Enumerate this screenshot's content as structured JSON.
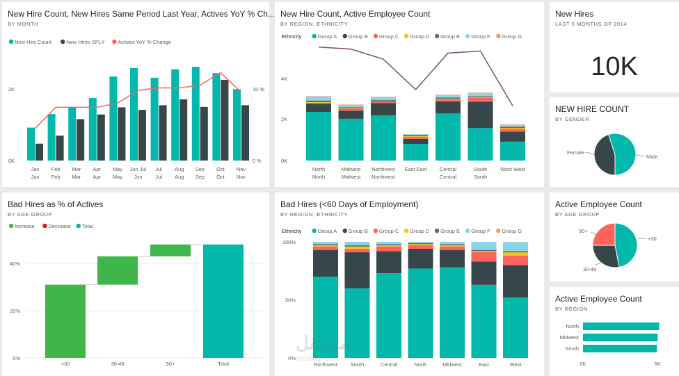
{
  "colors": {
    "teal": "#01b8aa",
    "dark": "#374649",
    "red": "#fd625e",
    "yellow": "#f2c80f",
    "gray": "#5f6b6d",
    "lightblue": "#8ad4eb",
    "orange": "#fe9666",
    "green": "#3fb64a",
    "decrease": "#e81123",
    "line": "#7a5560"
  },
  "ethnicity_legend": {
    "label": "Ethnicity",
    "items": [
      "Group A",
      "Group B",
      "Group C",
      "Group D",
      "Group E",
      "Group F",
      "Group G"
    ]
  },
  "tile1": {
    "title": "New Hire Count, New Hires Same Period Last Year, Actives YoY % Ch...",
    "subtitle": "BY MONTH",
    "legend": [
      "New Hire Count",
      "New Hires SPLY",
      "Actives YoY % Change"
    ]
  },
  "tile2": {
    "title": "New Hire Count, Active Employee Count",
    "subtitle": "BY REGION, ETHNICITY"
  },
  "tile3": {
    "title": "New Hires",
    "subtitle": "LAST 6 MONTHS OF 2014",
    "value": "10K"
  },
  "tile4": {
    "title": "NEW HIRE COUNT",
    "subtitle": "BY GENDER"
  },
  "tile5": {
    "title": "Bad Hires as % of Actives",
    "subtitle": "BY AGE GROUP",
    "legend": [
      "Increase",
      "Decrease",
      "Total"
    ]
  },
  "tile6": {
    "title": "Bad Hires (<60 Days of Employment)",
    "subtitle": "BY REGION, ETHNICITY"
  },
  "tile7": {
    "title": "Active Employee Count",
    "subtitle": "BY AGE GROUP"
  },
  "tile8": {
    "title": "Active Employee Count",
    "subtitle": "BY REGION"
  },
  "watermark": {
    "text": "مستقل",
    "url": "mostaql.com"
  },
  "chart_data": [
    {
      "type": "bar",
      "id": "monthly",
      "categories": [
        "Jan",
        "Feb",
        "Mar",
        "Apr",
        "May",
        "Jun",
        "Jul",
        "Aug",
        "Sep",
        "Oct",
        "Nov"
      ],
      "x_labels_top": [
        "Jan",
        "Feb",
        "Mar",
        "Apr",
        "May",
        "Jun Jul",
        "Jul",
        "Aug",
        "Sep",
        "Oct",
        "Nov"
      ],
      "x_labels_bottom": [
        "Jan",
        "Feb",
        "Mar",
        "Apr",
        "May",
        "Jun",
        "Jul",
        "Aug",
        "Sep",
        "Oct",
        "Nov"
      ],
      "series": [
        {
          "name": "New Hire Count",
          "values": [
            780,
            1100,
            1260,
            1480,
            1990,
            2190,
            1960,
            2160,
            2220,
            2070,
            1690
          ]
        },
        {
          "name": "New Hires SPLY",
          "values": [
            400,
            590,
            980,
            1090,
            1260,
            1200,
            1310,
            1450,
            1270,
            1910,
            1310
          ]
        },
        {
          "name": "Actives YoY % Change",
          "values": [
            3.8,
            6.3,
            6.3,
            6.3,
            6.8,
            8.3,
            8.6,
            8.6,
            8.9,
            10.4,
            8.1
          ]
        }
      ],
      "yticks_left": [
        "2K",
        "0K"
      ],
      "yticks_right": [
        "10 %",
        "0 %"
      ],
      "ylim": [
        0,
        2600
      ],
      "y2lim": [
        0,
        13
      ]
    },
    {
      "type": "bar",
      "id": "region_ethnicity",
      "categories": [
        "North",
        "Midwest",
        "Northwest",
        "East East",
        "Central",
        "South",
        "West West"
      ],
      "x_labels_top": [
        "North",
        "Midwest",
        "Northwest",
        "East East",
        "Central",
        "South",
        "West West"
      ],
      "x_labels_bottom": [
        "North",
        "Midwest",
        "Northwest",
        "",
        "Central",
        "South",
        ""
      ],
      "stacked": true,
      "series": [
        {
          "name": "Group A",
          "values": [
            2400,
            2060,
            2230,
            820,
            2320,
            1600,
            930
          ]
        },
        {
          "name": "Group B",
          "values": [
            400,
            400,
            600,
            250,
            600,
            1300,
            500
          ]
        },
        {
          "name": "Group C",
          "values": [
            50,
            100,
            50,
            100,
            100,
            200,
            130
          ]
        },
        {
          "name": "Group D",
          "values": [
            30,
            20,
            20,
            30,
            30,
            30,
            50
          ]
        },
        {
          "name": "Group E",
          "values": [
            80,
            50,
            80,
            60,
            60,
            50,
            60
          ]
        },
        {
          "name": "Group F",
          "values": [
            200,
            100,
            150,
            40,
            120,
            140,
            80
          ]
        },
        {
          "name": "Group G",
          "values": [
            20,
            30,
            20,
            0,
            20,
            30,
            30
          ]
        }
      ],
      "line": {
        "name": "Active Employee Count",
        "values": [
          5600,
          5500,
          5000,
          3500,
          5300,
          5400,
          2700
        ]
      },
      "yticks": [
        "4K",
        "2K",
        "0K"
      ],
      "ylim": [
        0,
        6000
      ]
    },
    {
      "type": "pie",
      "id": "gender",
      "labels": [
        "Female",
        "Male"
      ],
      "values": [
        45,
        55
      ]
    },
    {
      "type": "bar",
      "id": "waterfall",
      "categories": [
        "<30",
        "30-49",
        "50+",
        "Total"
      ],
      "values": [
        31,
        12,
        5,
        48
      ],
      "kinds": [
        "increase",
        "increase",
        "increase",
        "total"
      ],
      "yticks": [
        "40%",
        "20%",
        "0%"
      ],
      "ylim": [
        0,
        50
      ]
    },
    {
      "type": "bar",
      "id": "bad_hires",
      "categories": [
        "Northwest",
        "South",
        "Central",
        "North",
        "Midwest",
        "East",
        "West"
      ],
      "stacked": true,
      "percent": true,
      "series": [
        {
          "name": "Group A",
          "values": [
            70,
            60,
            73,
            77,
            78,
            63,
            52
          ]
        },
        {
          "name": "Group B",
          "values": [
            23,
            31,
            19,
            17,
            15,
            20,
            28
          ]
        },
        {
          "name": "Group C",
          "values": [
            3,
            3,
            4,
            3,
            3,
            8,
            8
          ]
        },
        {
          "name": "Group D",
          "values": [
            1,
            2,
            1,
            1,
            1,
            1,
            3
          ]
        },
        {
          "name": "Group E",
          "values": [
            1,
            1,
            1,
            1,
            1,
            1,
            1
          ]
        },
        {
          "name": "Group F",
          "values": [
            2,
            3,
            2,
            1,
            2,
            7,
            8
          ]
        }
      ],
      "yticks": [
        "100%",
        "50%",
        "0%"
      ],
      "ylim": [
        0,
        100
      ]
    },
    {
      "type": "pie",
      "id": "age_group",
      "labels": [
        "+30",
        "30-49",
        "50+"
      ],
      "values": [
        47,
        28,
        25
      ]
    },
    {
      "type": "bar",
      "id": "by_region",
      "orientation": "horizontal",
      "categories": [
        "North",
        "Midwest",
        "South"
      ],
      "values": [
        5100,
        5000,
        4950
      ],
      "xticks": [
        "0K",
        "5K"
      ],
      "xlim": [
        0,
        5500
      ]
    }
  ]
}
